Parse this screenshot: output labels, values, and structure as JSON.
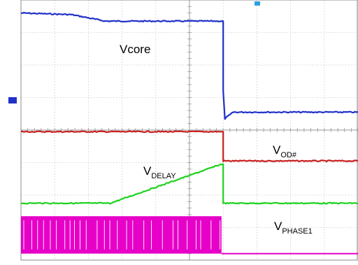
{
  "chart_data": {
    "type": "line",
    "title": "",
    "xlabel": "",
    "ylabel": "",
    "grid": true,
    "x_range": [
      0,
      10
    ],
    "y_range": [
      0,
      8
    ],
    "grid_divisions": {
      "x": 10,
      "y": 8
    },
    "series": [
      {
        "name": "Vcore",
        "label_main": "Vcore",
        "label_sub": "",
        "color": "#2030c8",
        "x": [
          0,
          1.5,
          2.5,
          6.0,
          6.0,
          6.05,
          6.3,
          10
        ],
        "y": [
          7.6,
          7.55,
          7.35,
          7.35,
          5.2,
          4.35,
          4.55,
          4.55
        ]
      },
      {
        "name": "VOD#",
        "label_main": "V",
        "label_sub": "OD#",
        "color": "#c81e1e",
        "x": [
          0,
          6.0,
          6.0,
          10
        ],
        "y": [
          3.95,
          3.95,
          3.05,
          3.05
        ]
      },
      {
        "name": "VDELAY",
        "label_main": "V",
        "label_sub": "DELAY",
        "color": "#1ed21e",
        "x": [
          0,
          2.65,
          5.95,
          6.0,
          6.0,
          10
        ],
        "y": [
          1.75,
          1.75,
          2.95,
          2.95,
          1.75,
          1.75
        ]
      },
      {
        "name": "VPHASE1",
        "label_main": "V",
        "label_sub": "PHASE1",
        "color": "#e600c8",
        "type": "switching",
        "x_on": [
          0,
          5.95
        ],
        "y_high": 1.35,
        "y_low": 0.2,
        "y_off": 0.2
      }
    ]
  }
}
